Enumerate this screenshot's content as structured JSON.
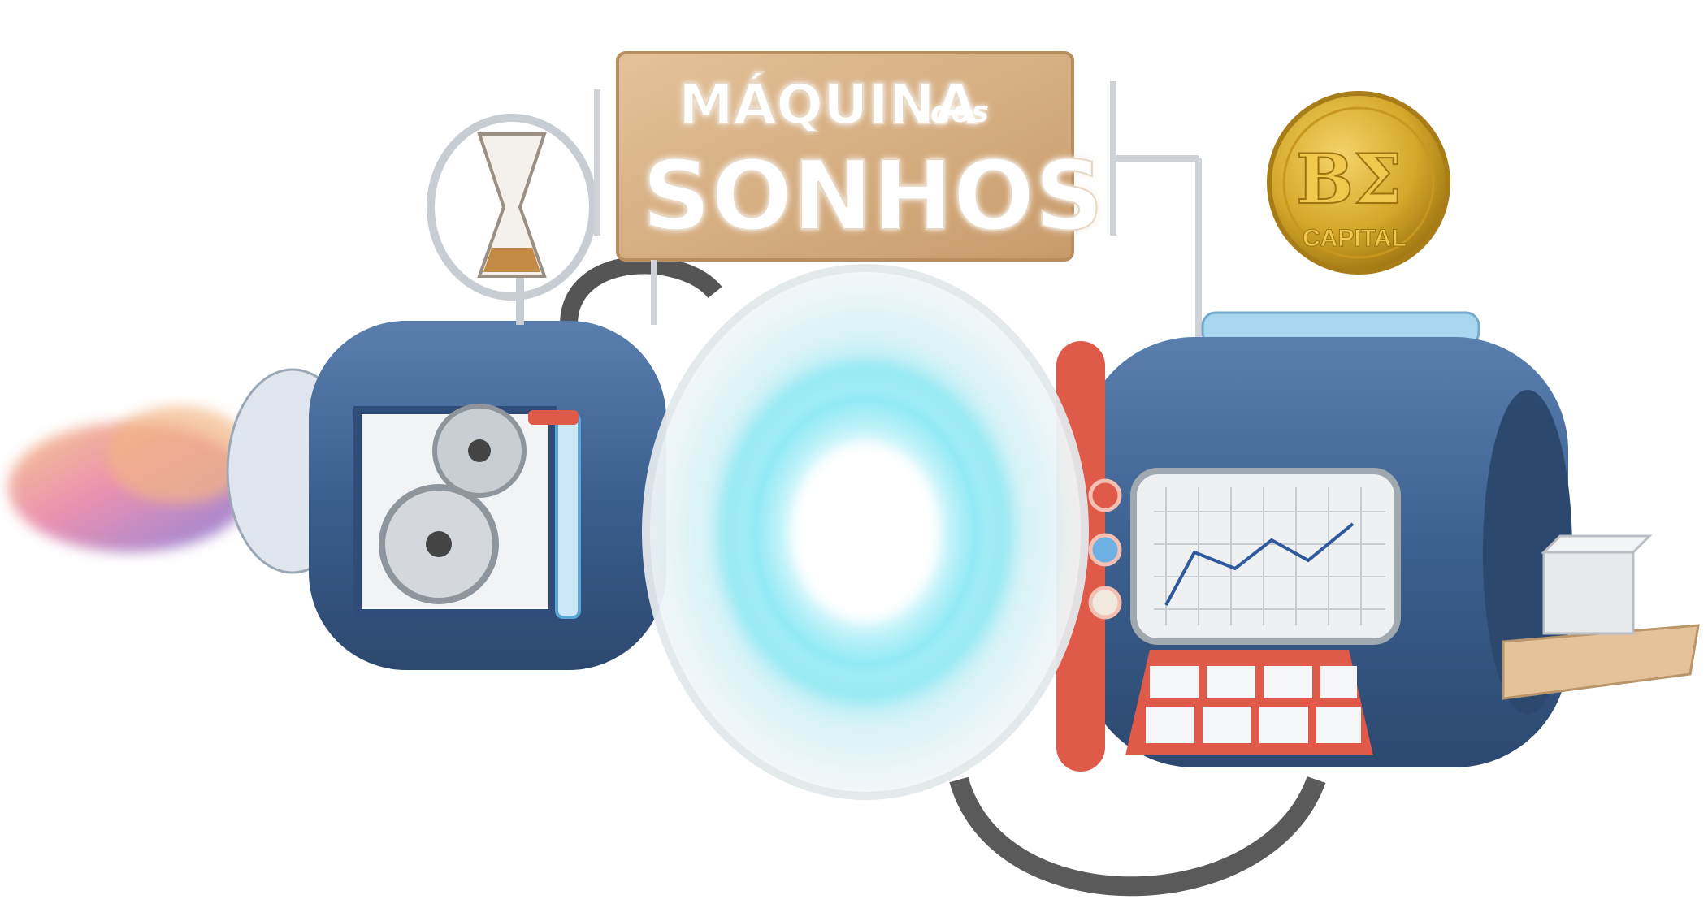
{
  "sign": {
    "line1": "MÁQUINA",
    "line1_small": "dos",
    "line2": "SONHOS"
  },
  "coin": {
    "logo": "BΣ",
    "label": "CAPITAL"
  },
  "colors": {
    "machine_blue": "#3b5f8e",
    "machine_red": "#e05a4a",
    "coin_gold": "#d4a82a",
    "sign_wood": "#d9b48a",
    "plasma_cyan": "#6fe3f0",
    "screen_line": "#2f5a9e"
  },
  "icons": [
    "hourglass-icon",
    "gear-icon",
    "coin-icon",
    "chart-icon",
    "keypad-icon",
    "box-icon",
    "cloud-icon"
  ]
}
